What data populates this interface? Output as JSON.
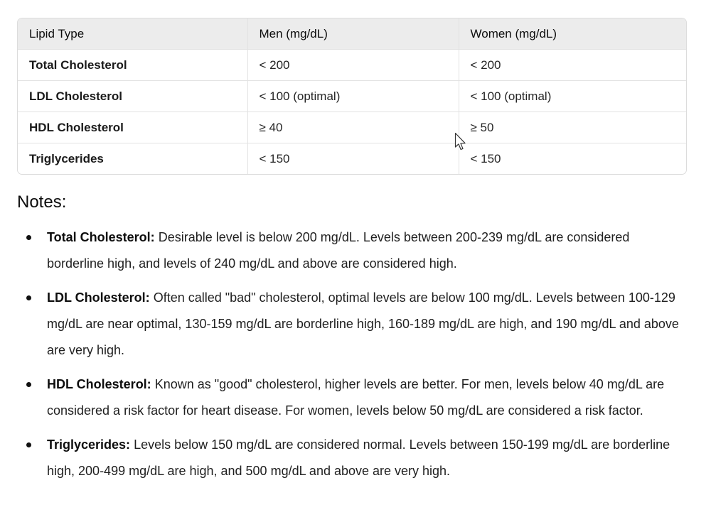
{
  "table": {
    "headers": [
      "Lipid Type",
      "Men (mg/dL)",
      "Women (mg/dL)"
    ],
    "rows": [
      [
        "Total Cholesterol",
        "< 200",
        "< 200"
      ],
      [
        "LDL Cholesterol",
        "< 100 (optimal)",
        "< 100 (optimal)"
      ],
      [
        "HDL Cholesterol",
        "≥ 40",
        "≥ 50"
      ],
      [
        "Triglycerides",
        "< 150",
        "< 150"
      ]
    ]
  },
  "notes": {
    "heading": "Notes:",
    "items": [
      {
        "term": "Total Cholesterol:",
        "text": " Desirable level is below 200 mg/dL. Levels between 200-239 mg/dL are considered borderline high, and levels of 240 mg/dL and above are considered high."
      },
      {
        "term": "LDL Cholesterol:",
        "text": " Often called \"bad\" cholesterol, optimal levels are below 100 mg/dL. Levels between 100-129 mg/dL are near optimal, 130-159 mg/dL are borderline high, 160-189 mg/dL are high, and 190 mg/dL and above are very high."
      },
      {
        "term": "HDL Cholesterol:",
        "text": " Known as \"good\" cholesterol, higher levels are better. For men, levels below 40 mg/dL are considered a risk factor for heart disease. For women, levels below 50 mg/dL are considered a risk factor."
      },
      {
        "term": "Triglycerides:",
        "text": " Levels below 150 mg/dL are considered normal. Levels between 150-199 mg/dL are borderline high, 200-499 mg/dL are high, and 500 mg/dL and above are very high."
      }
    ]
  },
  "cursor": {
    "icon": "mouse-pointer-icon"
  }
}
